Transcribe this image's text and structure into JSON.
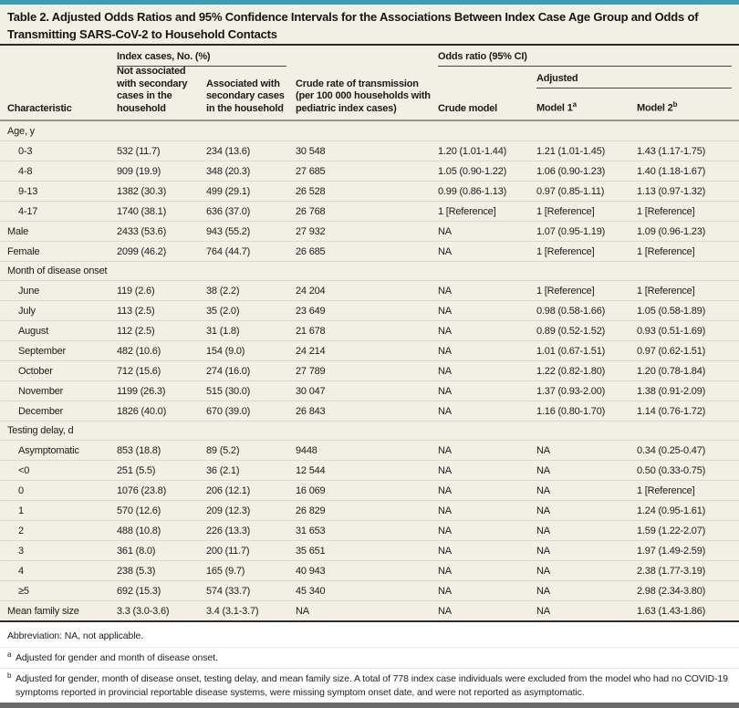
{
  "colors": {
    "top_bar": "#3f9eb5",
    "bottom_bar": "#6a6a6a",
    "card_bg": "#f2f0e5",
    "footnote_bg": "#ffffff"
  },
  "title": "Table 2. Adjusted Odds Ratios and 95% Confidence Intervals for the Associations Between Index Case Age Group and Odds of Transmitting SARS-CoV-2 to Household Contacts",
  "header": {
    "characteristic": "Characteristic",
    "index_cases_group": "Index cases, No. (%)",
    "not_associated": "Not associated with secondary cases in the household",
    "associated": "Associated with secondary cases in the household",
    "crude_rate": "Crude rate of transmission (per 100 000 households with pediatric index cases)",
    "odds_ratio_group": "Odds ratio (95% CI)",
    "crude_model": "Crude model",
    "adjusted_group": "Adjusted",
    "model1": "Model 1",
    "model1_marker": "a",
    "model2": "Model 2",
    "model2_marker": "b"
  },
  "rows": [
    {
      "type": "group",
      "label": "Age, y"
    },
    {
      "type": "data",
      "indent": true,
      "label": "0-3",
      "cells": [
        "532 (11.7)",
        "234 (13.6)",
        "30 548",
        "1.20 (1.01-1.44)",
        "1.21 (1.01-1.45)",
        "1.43 (1.17-1.75)"
      ]
    },
    {
      "type": "data",
      "indent": true,
      "label": "4-8",
      "cells": [
        "909 (19.9)",
        "348 (20.3)",
        "27 685",
        "1.05 (0.90-1.22)",
        "1.06 (0.90-1.23)",
        "1.40 (1.18-1.67)"
      ]
    },
    {
      "type": "data",
      "indent": true,
      "label": "9-13",
      "cells": [
        "1382 (30.3)",
        "499 (29.1)",
        "26 528",
        "0.99 (0.86-1.13)",
        "0.97 (0.85-1.11)",
        "1.13 (0.97-1.32)"
      ]
    },
    {
      "type": "data",
      "indent": true,
      "label": "4-17",
      "cells": [
        "1740 (38.1)",
        "636 (37.0)",
        "26 768",
        "1 [Reference]",
        "1 [Reference]",
        "1 [Reference]"
      ]
    },
    {
      "type": "data",
      "indent": false,
      "label": "Male",
      "cells": [
        "2433 (53.6)",
        "943 (55.2)",
        "27 932",
        "NA",
        "1.07 (0.95-1.19)",
        "1.09 (0.96-1.23)"
      ]
    },
    {
      "type": "data",
      "indent": false,
      "label": "Female",
      "cells": [
        "2099 (46.2)",
        "764 (44.7)",
        "26 685",
        "NA",
        "1 [Reference]",
        "1 [Reference]"
      ]
    },
    {
      "type": "group",
      "label": "Month of disease onset"
    },
    {
      "type": "data",
      "indent": true,
      "label": "June",
      "cells": [
        "119 (2.6)",
        "38 (2.2)",
        "24 204",
        "NA",
        "1 [Reference]",
        "1 [Reference]"
      ]
    },
    {
      "type": "data",
      "indent": true,
      "label": "July",
      "cells": [
        "113 (2.5)",
        "35 (2.0)",
        "23 649",
        "NA",
        "0.98 (0.58-1.66)",
        "1.05 (0.58-1.89)"
      ]
    },
    {
      "type": "data",
      "indent": true,
      "label": "August",
      "cells": [
        "112 (2.5)",
        "31 (1.8)",
        "21 678",
        "NA",
        "0.89 (0.52-1.52)",
        "0.93 (0.51-1.69)"
      ]
    },
    {
      "type": "data",
      "indent": true,
      "label": "September",
      "cells": [
        "482 (10.6)",
        "154 (9.0)",
        "24 214",
        "NA",
        "1.01 (0.67-1.51)",
        "0.97 (0.62-1.51)"
      ]
    },
    {
      "type": "data",
      "indent": true,
      "label": "October",
      "cells": [
        "712 (15.6)",
        "274 (16.0)",
        "27 789",
        "NA",
        "1.22 (0.82-1.80)",
        "1.20 (0.78-1.84)"
      ]
    },
    {
      "type": "data",
      "indent": true,
      "label": "November",
      "cells": [
        "1199 (26.3)",
        "515 (30.0)",
        "30 047",
        "NA",
        "1.37 (0.93-2.00)",
        "1.38 (0.91-2.09)"
      ]
    },
    {
      "type": "data",
      "indent": true,
      "label": "December",
      "cells": [
        "1826 (40.0)",
        "670 (39.0)",
        "26 843",
        "NA",
        "1.16 (0.80-1.70)",
        "1.14 (0.76-1.72)"
      ]
    },
    {
      "type": "group",
      "label": "Testing delay, d"
    },
    {
      "type": "data",
      "indent": true,
      "label": "Asymptomatic",
      "cells": [
        "853 (18.8)",
        "89 (5.2)",
        "9448",
        "NA",
        "NA",
        "0.34 (0.25-0.47)"
      ]
    },
    {
      "type": "data",
      "indent": true,
      "label": "<0",
      "cells": [
        "251 (5.5)",
        "36 (2.1)",
        "12 544",
        "NA",
        "NA",
        "0.50 (0.33-0.75)"
      ]
    },
    {
      "type": "data",
      "indent": true,
      "label": "0",
      "cells": [
        "1076 (23.8)",
        "206 (12.1)",
        "16 069",
        "NA",
        "NA",
        "1 [Reference]"
      ]
    },
    {
      "type": "data",
      "indent": true,
      "label": "1",
      "cells": [
        "570 (12.6)",
        "209 (12.3)",
        "26 829",
        "NA",
        "NA",
        "1.24 (0.95-1.61)"
      ]
    },
    {
      "type": "data",
      "indent": true,
      "label": "2",
      "cells": [
        "488 (10.8)",
        "226 (13.3)",
        "31 653",
        "NA",
        "NA",
        "1.59 (1.22-2.07)"
      ]
    },
    {
      "type": "data",
      "indent": true,
      "label": "3",
      "cells": [
        "361 (8.0)",
        "200 (11.7)",
        "35 651",
        "NA",
        "NA",
        "1.97 (1.49-2.59)"
      ]
    },
    {
      "type": "data",
      "indent": true,
      "label": "4",
      "cells": [
        "238 (5.3)",
        "165 (9.7)",
        "40 943",
        "NA",
        "NA",
        "2.38 (1.77-3.19)"
      ]
    },
    {
      "type": "data",
      "indent": true,
      "label": "≥5",
      "cells": [
        "692 (15.3)",
        "574 (33.7)",
        "45 340",
        "NA",
        "NA",
        "2.98 (2.34-3.80)"
      ]
    },
    {
      "type": "data",
      "indent": false,
      "label": "Mean family size",
      "cells": [
        "3.3 (3.0-3.6)",
        "3.4 (3.1-3.7)",
        "NA",
        "NA",
        "NA",
        "1.63 (1.43-1.86)"
      ]
    }
  ],
  "footnotes": {
    "abbreviation": "Abbreviation: NA, not applicable.",
    "a_marker": "a",
    "a_text": "Adjusted for gender and month of disease onset.",
    "b_marker": "b",
    "b_text": "Adjusted for gender, month of disease onset, testing delay, and mean family size. A total of 778 index case individuals were excluded from the model who had no COVID-19 symptoms reported in provincial reportable disease systems, were missing symptom onset date, and were not reported as asymptomatic."
  }
}
